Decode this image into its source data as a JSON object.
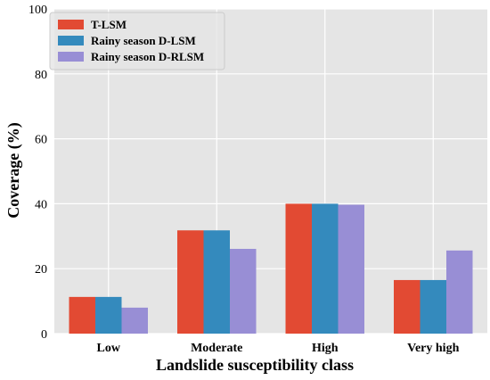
{
  "chart_data": {
    "type": "bar",
    "xlabel": "Landslide susceptibility class",
    "ylabel": "Coverage (%)",
    "ylim": [
      0,
      100
    ],
    "yticks": [
      "0",
      "20",
      "40",
      "60",
      "80",
      "100"
    ],
    "grid": true,
    "legend_position": "top-left",
    "categories": [
      "Low",
      "Moderate",
      "High",
      "Very high"
    ],
    "series": [
      {
        "name": "T-LSM",
        "color": "#E24A33",
        "values": [
          11.3,
          31.8,
          40.0,
          16.5
        ]
      },
      {
        "name": "Rainy season D-LSM",
        "color": "#348ABD",
        "values": [
          11.3,
          31.8,
          40.0,
          16.5
        ]
      },
      {
        "name": "Rainy season D-RLSM",
        "color": "#988ED5",
        "values": [
          8.0,
          26.1,
          39.7,
          25.6
        ]
      }
    ],
    "background_color": "#E5E5E5",
    "grid_color": "#FFFFFF"
  }
}
